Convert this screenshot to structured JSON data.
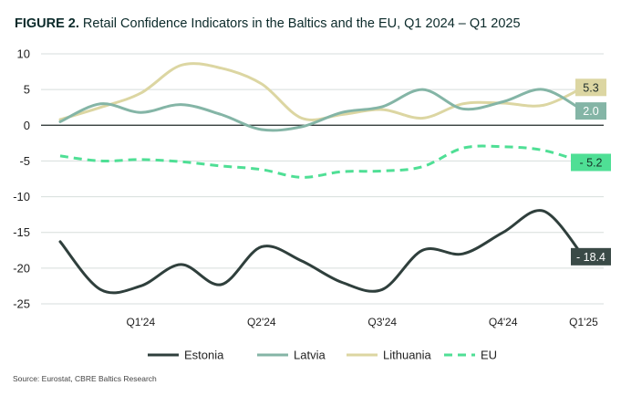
{
  "chart_data": {
    "type": "line",
    "title_lead": "FIGURE 2.",
    "title_rest": " Retail Confidence Indicators in the Baltics and the EU, Q1 2024 – Q1 2025",
    "source": "Source: Eurostat, CBRE Baltics Research",
    "xlabel": "",
    "ylabel": "",
    "ylim": [
      -25,
      10
    ],
    "yticks": [
      "10",
      "5",
      "0",
      "-5",
      "-10",
      "-15",
      "-20",
      "-25"
    ],
    "ytick_values": [
      10,
      5,
      0,
      -5,
      -10,
      -15,
      -20,
      -25
    ],
    "xlim": [
      0,
      13
    ],
    "x_ticks": [
      {
        "x": 2,
        "label": "Q1'24"
      },
      {
        "x": 5,
        "label": "Q2'24"
      },
      {
        "x": 8,
        "label": "Q3'24"
      },
      {
        "x": 11,
        "label": "Q4'24"
      },
      {
        "x": 13,
        "label": "Q1'25"
      }
    ],
    "series": [
      {
        "name": "Estonia",
        "color": "#2f3f3c",
        "dashed": false,
        "points": [
          [
            0,
            -16.3
          ],
          [
            1,
            -23
          ],
          [
            2,
            -22.5
          ],
          [
            3,
            -19.5
          ],
          [
            4,
            -22.3
          ],
          [
            5,
            -17
          ],
          [
            6,
            -19
          ],
          [
            7,
            -22
          ],
          [
            8,
            -23
          ],
          [
            9,
            -17.5
          ],
          [
            10,
            -18
          ],
          [
            11,
            -15
          ],
          [
            12,
            -12
          ],
          [
            13,
            -18.4
          ]
        ],
        "end_label": "- 18.4",
        "label_bg": "#3a4a47",
        "label_fg": "#ffffff"
      },
      {
        "name": "Latvia",
        "color": "#84b5a6",
        "dashed": false,
        "points": [
          [
            0,
            0.5
          ],
          [
            1,
            3
          ],
          [
            2,
            1.8
          ],
          [
            3,
            2.9
          ],
          [
            4,
            1.5
          ],
          [
            5,
            -0.6
          ],
          [
            6,
            -0.2
          ],
          [
            7,
            1.8
          ],
          [
            8,
            2.6
          ],
          [
            9,
            5
          ],
          [
            10,
            2.3
          ],
          [
            11,
            3.3
          ],
          [
            12,
            5
          ],
          [
            13,
            2.0
          ]
        ],
        "end_label": "2.0",
        "label_bg": "#84b5a6",
        "label_fg": "#ffffff"
      },
      {
        "name": "Lithuania",
        "color": "#dcd6a2",
        "dashed": false,
        "points": [
          [
            0,
            0.8
          ],
          [
            1,
            2.5
          ],
          [
            2,
            4.5
          ],
          [
            3,
            8.4
          ],
          [
            4,
            8
          ],
          [
            5,
            5.8
          ],
          [
            6,
            1
          ],
          [
            7,
            1.5
          ],
          [
            8,
            2.2
          ],
          [
            9,
            1
          ],
          [
            10,
            3
          ],
          [
            11,
            3.1
          ],
          [
            12,
            2.8
          ],
          [
            13,
            5.3
          ]
        ],
        "end_label": "5.3",
        "label_bg": "#dcd6a2",
        "label_fg": "#22302d"
      },
      {
        "name": "EU",
        "color": "#4fdf95",
        "dashed": true,
        "points": [
          [
            0,
            -4.3
          ],
          [
            1,
            -5
          ],
          [
            2,
            -4.8
          ],
          [
            3,
            -5.1
          ],
          [
            4,
            -5.7
          ],
          [
            5,
            -6.2
          ],
          [
            6,
            -7.3
          ],
          [
            7,
            -6.5
          ],
          [
            8,
            -6.4
          ],
          [
            9,
            -5.8
          ],
          [
            10,
            -3.2
          ],
          [
            11,
            -3
          ],
          [
            12,
            -3.5
          ],
          [
            13,
            -5.2
          ]
        ],
        "end_label": "- 5.2",
        "label_bg": "#4fdf95",
        "label_fg": "#163228"
      }
    ],
    "legend_position": "bottom",
    "grid": true
  }
}
